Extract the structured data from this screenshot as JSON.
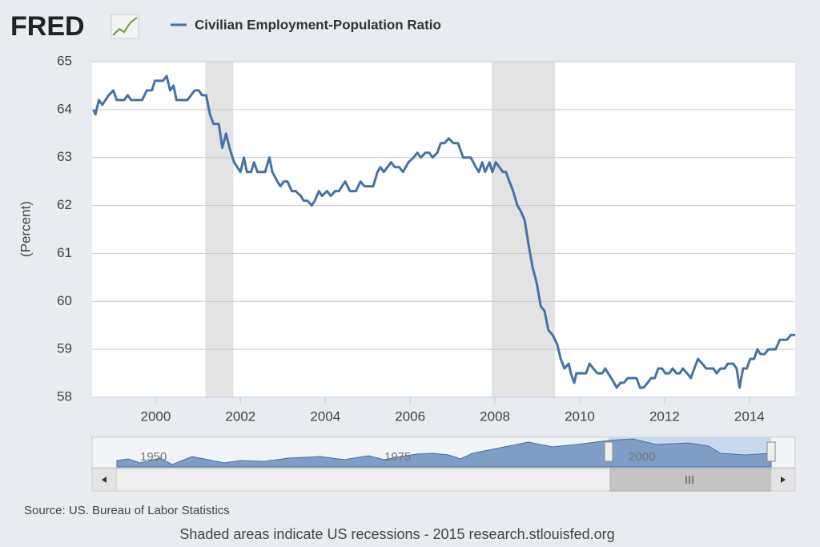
{
  "logo": "FRED",
  "source": "Source: US. Bureau of Labor Statistics",
  "footer": "Shaded areas indicate US recessions - 2015 research.stlouisfed.org",
  "navigator": {
    "labels": [
      "1950",
      "1975",
      "2000"
    ]
  },
  "chart_data": {
    "type": "line",
    "y_label": "(Percent)",
    "grid": true,
    "recessions": [
      [
        2001.17,
        2001.83
      ],
      [
        2007.92,
        2009.42
      ]
    ],
    "xlim": [
      1998.5,
      2015.08
    ],
    "xticks": [
      2000,
      2002,
      2004,
      2006,
      2008,
      2010,
      2012,
      2014
    ],
    "ylim": [
      58,
      65
    ],
    "yticks": [
      58,
      59,
      60,
      61,
      62,
      63,
      64,
      65
    ],
    "x": [
      1998.53,
      1998.58,
      1998.66,
      1998.74,
      1998.89,
      1999.0,
      1999.08,
      1999.26,
      1999.34,
      1999.42,
      1999.68,
      1999.79,
      1999.91,
      1999.98,
      2000.17,
      2000.26,
      2000.34,
      2000.42,
      2000.49,
      2000.75,
      2000.92,
      2001.02,
      2001.09,
      2001.19,
      2001.28,
      2001.36,
      2001.49,
      2001.57,
      2001.66,
      2001.74,
      2001.85,
      2002.0,
      2002.08,
      2002.15,
      2002.25,
      2002.32,
      2002.4,
      2002.58,
      2002.68,
      2002.75,
      2002.87,
      2002.94,
      2003.02,
      2003.11,
      2003.21,
      2003.3,
      2003.42,
      2003.49,
      2003.58,
      2003.68,
      2003.75,
      2003.85,
      2003.92,
      2004.04,
      2004.13,
      2004.23,
      2004.32,
      2004.47,
      2004.58,
      2004.72,
      2004.83,
      2004.92,
      2005.13,
      2005.23,
      2005.3,
      2005.38,
      2005.55,
      2005.64,
      2005.74,
      2005.83,
      2005.96,
      2006.08,
      2006.17,
      2006.25,
      2006.36,
      2006.45,
      2006.53,
      2006.64,
      2006.72,
      2006.81,
      2006.91,
      2007.02,
      2007.13,
      2007.25,
      2007.43,
      2007.55,
      2007.62,
      2007.7,
      2007.77,
      2007.87,
      2007.94,
      2008.02,
      2008.19,
      2008.26,
      2008.34,
      2008.43,
      2008.53,
      2008.6,
      2008.7,
      2008.79,
      2008.89,
      2008.98,
      2009.08,
      2009.17,
      2009.26,
      2009.36,
      2009.47,
      2009.55,
      2009.64,
      2009.74,
      2009.79,
      2009.87,
      2009.92,
      2010.15,
      2010.23,
      2010.32,
      2010.42,
      2010.53,
      2010.6,
      2010.74,
      2010.81,
      2010.87,
      2010.96,
      2011.04,
      2011.13,
      2011.34,
      2011.42,
      2011.51,
      2011.6,
      2011.68,
      2011.77,
      2011.85,
      2011.94,
      2012.02,
      2012.11,
      2012.19,
      2012.28,
      2012.36,
      2012.43,
      2012.53,
      2012.62,
      2012.7,
      2012.79,
      2012.89,
      2012.98,
      2013.15,
      2013.23,
      2013.32,
      2013.42,
      2013.49,
      2013.62,
      2013.7,
      2013.77,
      2013.85,
      2013.94,
      2014.02,
      2014.11,
      2014.19,
      2014.26,
      2014.36,
      2014.45,
      2014.62,
      2014.72,
      2014.89,
      2014.98,
      2015.08
    ],
    "series": [
      {
        "name": "Civilian Employment-Population Ratio",
        "color": "#4572a7",
        "values": [
          64.0,
          63.9,
          64.2,
          64.1,
          64.3,
          64.4,
          64.2,
          64.2,
          64.3,
          64.2,
          64.2,
          64.4,
          64.4,
          64.6,
          64.6,
          64.7,
          64.4,
          64.5,
          64.2,
          64.2,
          64.4,
          64.4,
          64.3,
          64.3,
          63.9,
          63.7,
          63.7,
          63.2,
          63.5,
          63.2,
          62.9,
          62.7,
          63.0,
          62.7,
          62.7,
          62.9,
          62.7,
          62.7,
          63.0,
          62.7,
          62.5,
          62.4,
          62.5,
          62.5,
          62.3,
          62.3,
          62.2,
          62.1,
          62.1,
          62.0,
          62.1,
          62.3,
          62.2,
          62.3,
          62.2,
          62.3,
          62.3,
          62.5,
          62.3,
          62.3,
          62.5,
          62.4,
          62.4,
          62.7,
          62.8,
          62.7,
          62.9,
          62.8,
          62.8,
          62.7,
          62.9,
          63.0,
          63.1,
          63.0,
          63.1,
          63.1,
          63.0,
          63.1,
          63.3,
          63.3,
          63.4,
          63.3,
          63.3,
          63.0,
          63.0,
          62.8,
          62.7,
          62.9,
          62.7,
          62.9,
          62.7,
          62.9,
          62.7,
          62.7,
          62.5,
          62.3,
          62.0,
          61.9,
          61.7,
          61.2,
          60.7,
          60.4,
          59.9,
          59.8,
          59.4,
          59.3,
          59.1,
          58.8,
          58.6,
          58.7,
          58.5,
          58.3,
          58.5,
          58.5,
          58.7,
          58.6,
          58.5,
          58.5,
          58.6,
          58.4,
          58.3,
          58.2,
          58.3,
          58.3,
          58.4,
          58.4,
          58.2,
          58.2,
          58.3,
          58.4,
          58.4,
          58.6,
          58.6,
          58.5,
          58.5,
          58.6,
          58.5,
          58.5,
          58.6,
          58.5,
          58.4,
          58.6,
          58.8,
          58.7,
          58.6,
          58.6,
          58.5,
          58.6,
          58.6,
          58.7,
          58.7,
          58.6,
          58.2,
          58.6,
          58.6,
          58.8,
          58.8,
          59.0,
          58.9,
          58.9,
          59.0,
          59.0,
          59.2,
          59.2,
          59.3,
          59.3
        ]
      }
    ]
  }
}
